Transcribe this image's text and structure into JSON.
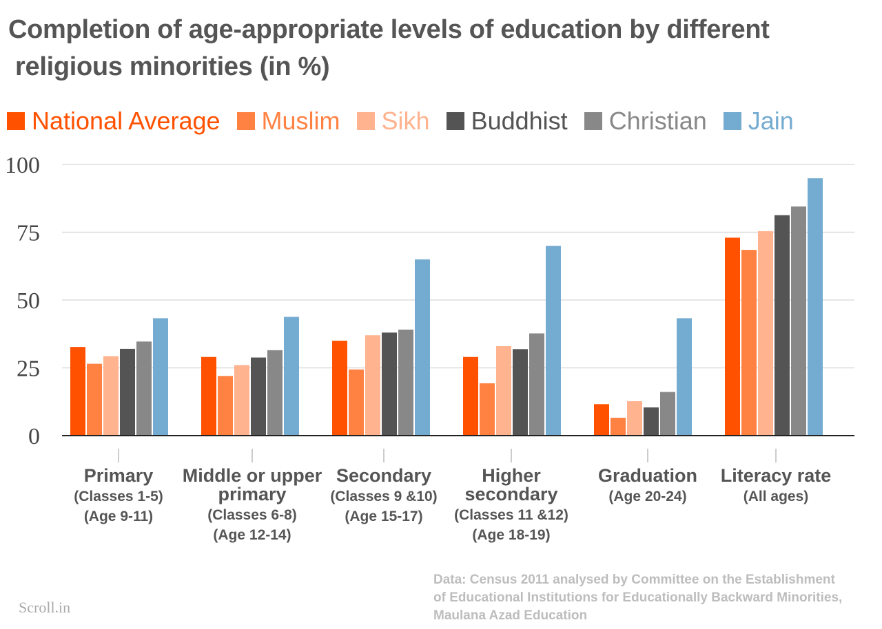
{
  "title": {
    "line1": "Completion of age-appropriate levels of education by different",
    "line2": "religious minorities (in %)"
  },
  "chart_data": {
    "type": "bar",
    "title": "Completion of age-appropriate levels of education by different religious minorities (in %)",
    "categories": [
      {
        "lines": [
          "Primary"
        ],
        "sub": [
          "(Classes 1-5)",
          "(Age 9-11)"
        ]
      },
      {
        "lines": [
          "Middle or upper",
          "primary"
        ],
        "sub": [
          "(Classes 6-8)",
          "(Age 12-14)"
        ]
      },
      {
        "lines": [
          "Secondary"
        ],
        "sub": [
          "(Classes 9 &10)",
          "(Age 15-17)"
        ]
      },
      {
        "lines": [
          "Higher",
          "secondary"
        ],
        "sub": [
          "(Classes 11 &12)",
          "(Age 18-19)"
        ]
      },
      {
        "lines": [
          "Graduation"
        ],
        "sub": [
          "(Age 20-24)"
        ]
      },
      {
        "lines": [
          "Literacy rate"
        ],
        "sub": [
          "(All ages)"
        ]
      }
    ],
    "series": [
      {
        "name": "National Average",
        "color": "#ff5100",
        "values": [
          32.7,
          29.0,
          35.0,
          29.0,
          11.6,
          73.0
        ]
      },
      {
        "name": "Muslim",
        "color": "#ff8243",
        "values": [
          26.5,
          22.0,
          24.4,
          19.3,
          6.6,
          68.5
        ]
      },
      {
        "name": "Sikh",
        "color": "#ffb38f",
        "values": [
          29.3,
          26.0,
          37.0,
          33.0,
          12.7,
          75.4
        ]
      },
      {
        "name": "Buddhist",
        "color": "#545454",
        "values": [
          32.0,
          28.8,
          38.0,
          31.9,
          10.4,
          81.3
        ]
      },
      {
        "name": "Christian",
        "color": "#888888",
        "values": [
          34.7,
          31.5,
          39.1,
          37.7,
          16.1,
          84.5
        ]
      },
      {
        "name": "Jain",
        "color": "#74abd1",
        "values": [
          43.3,
          43.8,
          65.0,
          70.0,
          43.3,
          94.9
        ]
      }
    ],
    "ylim": [
      0,
      100
    ],
    "yticks": [
      "0",
      "25",
      "50",
      "75",
      "100"
    ],
    "ytick_values": [
      0,
      25,
      50,
      75,
      100
    ],
    "grid": true,
    "legend_position": "top-left"
  },
  "source": {
    "line1": "Data: Census 2011 analysed by Committee on the Establishment",
    "line2": "of Educational Institutions for Educationally Backward Minorities,",
    "line3": "Maulana Azad Education"
  },
  "brand": "Scroll.in"
}
